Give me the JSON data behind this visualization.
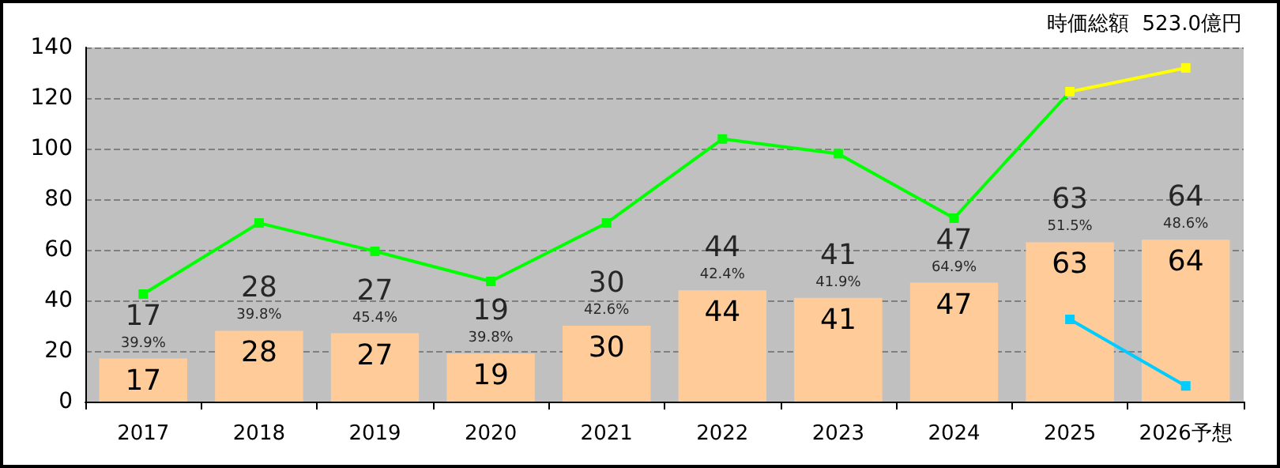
{
  "chart_data": {
    "type": "bar",
    "categories": [
      "2017",
      "2018",
      "2019",
      "2020",
      "2021",
      "2022",
      "2023",
      "2024",
      "2025",
      "2026予想"
    ],
    "series": [
      {
        "color": "#ffcc99",
        "values": [
          17,
          28,
          27,
          19,
          30,
          44,
          41,
          47,
          63,
          64
        ],
        "data_labels": true,
        "value_labels": [
          "17",
          "28",
          "27",
          "19",
          "30",
          "44",
          "41",
          "47",
          "63",
          "64"
        ]
      },
      {
        "type": "line",
        "color": "#00ff00",
        "values": [
          42.5,
          70.6,
          59.4,
          47.5,
          70.6,
          103.8,
          98,
          72.5,
          122.5,
          null
        ]
      },
      {
        "type": "line",
        "color": "#ffff00",
        "values": [
          null,
          null,
          null,
          null,
          null,
          null,
          null,
          null,
          122.5,
          131.9
        ]
      },
      {
        "type": "line",
        "color": "#00ccff",
        "values": [
          null,
          null,
          null,
          null,
          null,
          null,
          null,
          null,
          32.5,
          6.2
        ]
      }
    ],
    "ylim": [
      0,
      140
    ],
    "yticks": [
      0,
      20,
      40,
      60,
      80,
      100,
      120,
      140
    ],
    "grid": "y",
    "marker": "square",
    "line_style": "solid",
    "annotations": [
      "時価総額  523.0億円",
      {
        "text": "39.9%",
        "x": "2017",
        "y": 17
      },
      {
        "text": "39.8%",
        "x": "2018",
        "y": 28
      },
      {
        "text": "45.4%",
        "x": "2019",
        "y": 27
      },
      {
        "text": "39.8%",
        "x": "2020",
        "y": 19
      },
      {
        "text": "42.6%",
        "x": "2021",
        "y": 30
      },
      {
        "text": "42.4%",
        "x": "2022",
        "y": 44
      },
      {
        "text": "41.9%",
        "x": "2023",
        "y": 41
      },
      {
        "text": "64.9%",
        "x": "2024",
        "y": 47
      },
      {
        "text": "51.5%",
        "x": "2025",
        "y": 63
      },
      {
        "text": "48.6%",
        "x": "2026予想",
        "y": 64
      }
    ]
  }
}
